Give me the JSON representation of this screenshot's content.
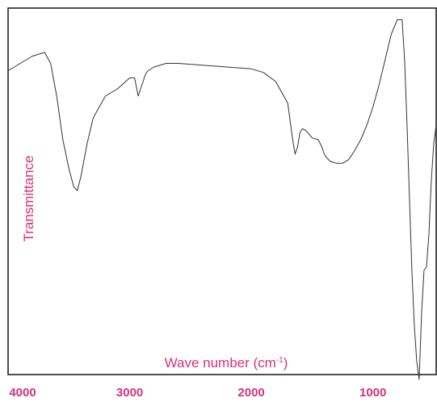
{
  "chart_data": {
    "type": "line",
    "title": "",
    "xlabel": "Wave number (cm",
    "xlabel_sup": "-1",
    "xlabel_close": ")",
    "ylabel": "Transmittance",
    "x_reversed": true,
    "xlim": [
      4000,
      480
    ],
    "ylim": [
      0,
      100
    ],
    "xticks": [
      4000,
      3000,
      2000,
      1000
    ],
    "xtick_labels": [
      "4000",
      "3000",
      "2000",
      "1000"
    ],
    "grid": false,
    "colors": {
      "line": "#333333",
      "frame": "#222222",
      "label": "#d4327a",
      "tick": "#d4327a"
    },
    "series": [
      {
        "x": [
          4000,
          3900,
          3800,
          3700,
          3650,
          3600,
          3550,
          3500,
          3460,
          3430,
          3400,
          3350,
          3300,
          3200,
          3100,
          3000,
          2960,
          2930,
          2900,
          2870,
          2850,
          2800,
          2700,
          2600,
          2400,
          2200,
          2000,
          1900,
          1800,
          1700,
          1660,
          1640,
          1620,
          1600,
          1580,
          1550,
          1500,
          1450,
          1420,
          1400,
          1380,
          1350,
          1300,
          1250,
          1200,
          1150,
          1100,
          1050,
          1000,
          950,
          900,
          850,
          800,
          760,
          740,
          720,
          700,
          680,
          660,
          640,
          620,
          600,
          580,
          560,
          540,
          520,
          500,
          480
        ],
        "y": [
          85,
          87,
          89,
          90,
          87,
          78,
          66,
          58,
          53,
          52,
          56,
          65,
          72,
          78,
          80,
          83,
          83,
          78,
          81,
          84,
          85,
          86,
          87,
          87,
          86.5,
          86,
          85.5,
          84.5,
          82,
          76,
          66,
          62,
          64,
          68,
          69,
          68.5,
          66.5,
          66,
          64,
          62,
          61,
          60,
          59.5,
          59.5,
          60.5,
          63,
          66,
          70,
          75,
          81,
          88,
          95,
          99,
          99,
          88,
          70,
          50,
          30,
          15,
          5,
          0,
          18,
          30,
          31,
          40,
          55,
          65,
          70
        ]
      }
    ]
  }
}
